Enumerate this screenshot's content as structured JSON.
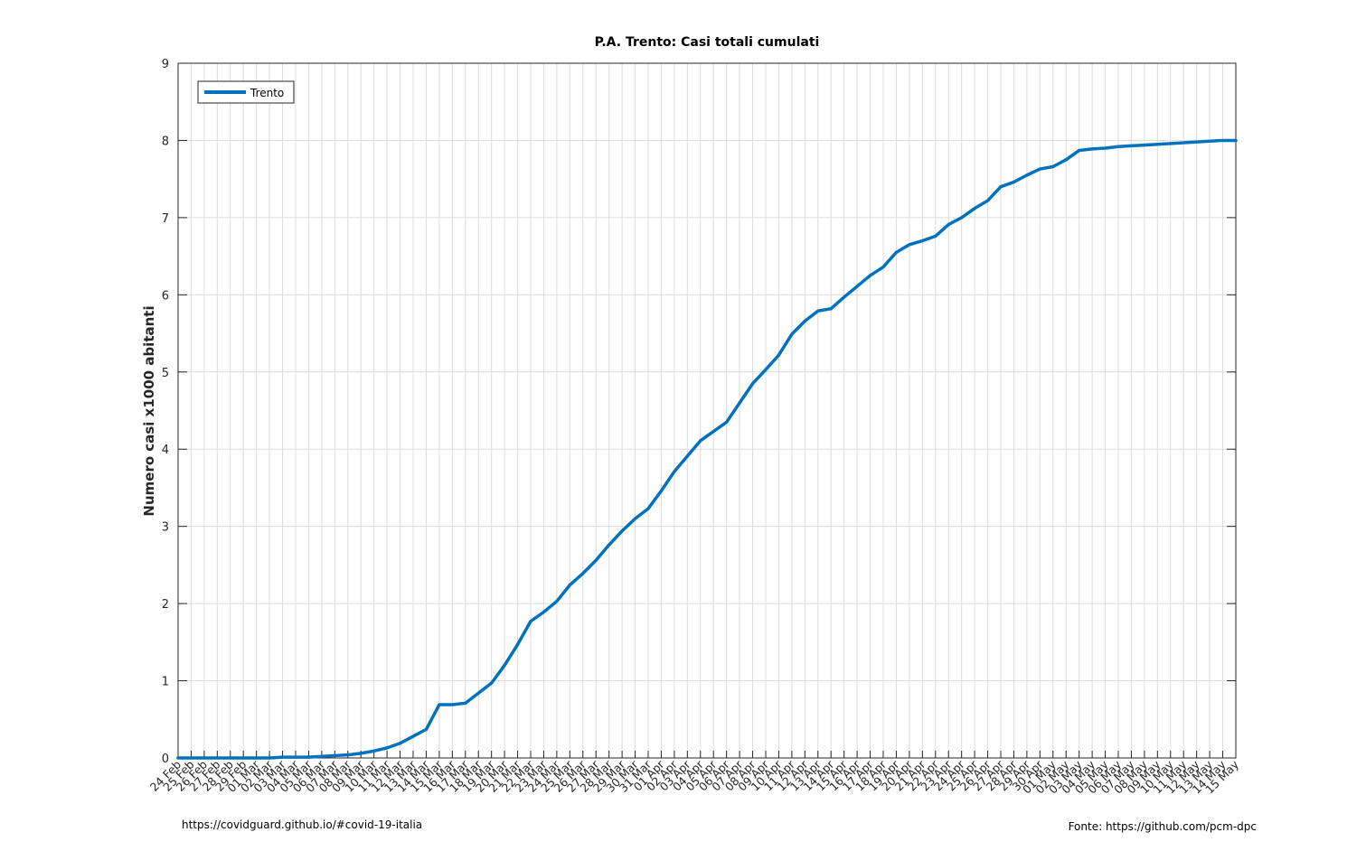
{
  "footer": {
    "left": "https://covidguard.github.io/#covid-19-italia",
    "right": "Fonte: https://github.com/pcm-dpc"
  },
  "chart_data": {
    "type": "line",
    "title": "P.A. Trento: Casi totali cumulati",
    "xlabel": "",
    "ylabel": "Numero casi x1000 abitanti",
    "ylim": [
      0,
      9
    ],
    "yticks": [
      0,
      1,
      2,
      3,
      4,
      5,
      6,
      7,
      8,
      9
    ],
    "grid": true,
    "legend_position": "top-left",
    "colors": {
      "series": "#0072BD",
      "grid": "#dcdcdc",
      "axis": "#262626"
    },
    "categories": [
      "24 Feb",
      "25 Feb",
      "26 Feb",
      "27 Feb",
      "28 Feb",
      "29 Feb",
      "01 Mar",
      "02 Mar",
      "03 Mar",
      "04 Mar",
      "05 Mar",
      "06 Mar",
      "07 Mar",
      "08 Mar",
      "09 Mar",
      "10 Mar",
      "11 Mar",
      "12 Mar",
      "13 Mar",
      "14 Mar",
      "15 Mar",
      "16 Mar",
      "17 Mar",
      "18 Mar",
      "19 Mar",
      "20 Mar",
      "21 Mar",
      "22 Mar",
      "23 Mar",
      "24 Mar",
      "25 Mar",
      "26 Mar",
      "27 Mar",
      "28 Mar",
      "29 Mar",
      "30 Mar",
      "31 Mar",
      "01 Apr",
      "02 Apr",
      "03 Apr",
      "04 Apr",
      "05 Apr",
      "06 Apr",
      "07 Apr",
      "08 Apr",
      "09 Apr",
      "10 Apr",
      "11 Apr",
      "12 Apr",
      "13 Apr",
      "14 Apr",
      "15 Apr",
      "16 Apr",
      "17 Apr",
      "18 Apr",
      "19 Apr",
      "20 Apr",
      "21 Apr",
      "22 Apr",
      "23 Apr",
      "24 Apr",
      "25 Apr",
      "26 Apr",
      "27 Apr",
      "28 Apr",
      "29 Apr",
      "30 Apr",
      "01 May",
      "02 May",
      "03 May",
      "04 May",
      "05 May",
      "06 May",
      "07 May",
      "08 May",
      "09 May",
      "10 May",
      "11 May",
      "12 May",
      "13 May",
      "14 May",
      "15 May"
    ],
    "series": [
      {
        "name": "Trento",
        "values": [
          0.0,
          0.0,
          0.0,
          0.0,
          0.0,
          0.0,
          0.0,
          0.0,
          0.01,
          0.01,
          0.01,
          0.02,
          0.03,
          0.04,
          0.06,
          0.09,
          0.13,
          0.19,
          0.28,
          0.37,
          0.69,
          0.69,
          0.71,
          0.84,
          0.97,
          1.2,
          1.47,
          1.77,
          1.89,
          2.03,
          2.24,
          2.39,
          2.56,
          2.76,
          2.94,
          3.1,
          3.23,
          3.46,
          3.71,
          3.91,
          4.11,
          4.23,
          4.35,
          4.6,
          4.85,
          5.03,
          5.22,
          5.49,
          5.66,
          5.79,
          5.82,
          5.97,
          6.11,
          6.25,
          6.36,
          6.55,
          6.65,
          6.7,
          6.76,
          6.91,
          7.0,
          7.12,
          7.22,
          7.4,
          7.46,
          7.55,
          7.63,
          7.66,
          7.75,
          7.87,
          7.89,
          7.9,
          7.92,
          7.93,
          7.94,
          7.95,
          7.96,
          7.97,
          7.98,
          7.99,
          8.0,
          8.0
        ]
      }
    ]
  }
}
